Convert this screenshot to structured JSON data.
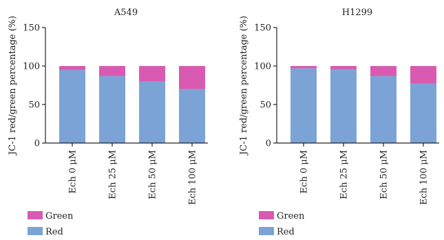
{
  "chart_data": [
    {
      "type": "bar",
      "stacked": true,
      "title": "A549",
      "xlabel": "",
      "ylabel": "JC-1 red/green percentage (%)",
      "ylim": [
        0,
        150
      ],
      "yticks": [
        0,
        50,
        100,
        150
      ],
      "categories": [
        "Ech 0 μM",
        "Ech 25 μM",
        "Ech 50 μM",
        "Ech 100 μM"
      ],
      "series": [
        {
          "name": "Red",
          "color": "#7ba3d6",
          "values": [
            95,
            87,
            80,
            70
          ]
        },
        {
          "name": "Green",
          "color": "#d95ab1",
          "values": [
            5,
            13,
            20,
            30
          ]
        }
      ],
      "legend_placement": "bottom-left",
      "grid": false
    },
    {
      "type": "bar",
      "stacked": true,
      "title": "H1299",
      "xlabel": "",
      "ylabel": "JC-1 red/green percentage (%)",
      "ylim": [
        0,
        150
      ],
      "yticks": [
        0,
        50,
        100,
        150
      ],
      "categories": [
        "Ech 0 μM",
        "Ech 25 μM",
        "Ech 50 μM",
        "Ech 100 μM"
      ],
      "series": [
        {
          "name": "Red",
          "color": "#7ba3d6",
          "values": [
            97,
            96,
            87,
            77
          ]
        },
        {
          "name": "Green",
          "color": "#d95ab1",
          "values": [
            3,
            4,
            13,
            23
          ]
        }
      ],
      "legend_placement": "bottom-left",
      "grid": false
    }
  ]
}
